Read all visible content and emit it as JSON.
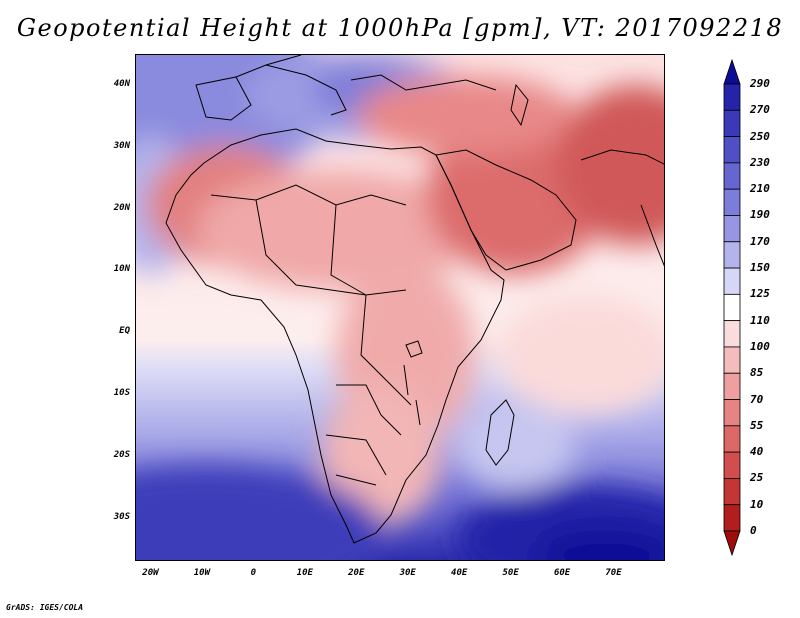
{
  "title": "Geopotential Height at 1000hPa [gpm], VT: 2017092218",
  "footer": "GrADS: IGES/COLA",
  "map": {
    "variable": "Geopotential Height at 1000hPa",
    "units": "gpm",
    "valid_time": "2017092218",
    "lon_range": [
      -23,
      80
    ],
    "lat_range": [
      -37,
      45
    ],
    "lat_labels": [
      {
        "lat": 40,
        "label": "40N"
      },
      {
        "lat": 30,
        "label": "30N"
      },
      {
        "lat": 20,
        "label": "20N"
      },
      {
        "lat": 10,
        "label": "10N"
      },
      {
        "lat": 0,
        "label": "EQ"
      },
      {
        "lat": -10,
        "label": "10S"
      },
      {
        "lat": -20,
        "label": "20S"
      },
      {
        "lat": -30,
        "label": "30S"
      }
    ],
    "lon_labels": [
      {
        "lon": -20,
        "label": "20W"
      },
      {
        "lon": -10,
        "label": "10W"
      },
      {
        "lon": 0,
        "label": "0"
      },
      {
        "lon": 10,
        "label": "10E"
      },
      {
        "lon": 20,
        "label": "20E"
      },
      {
        "lon": 30,
        "label": "30E"
      },
      {
        "lon": 40,
        "label": "40E"
      },
      {
        "lon": 50,
        "label": "50E"
      },
      {
        "lon": 60,
        "label": "60E"
      },
      {
        "lon": 70,
        "label": "70E"
      }
    ]
  },
  "colorbar": {
    "labels": [
      "290",
      "270",
      "250",
      "230",
      "210",
      "190",
      "170",
      "150",
      "125",
      "110",
      "100",
      "85",
      "70",
      "55",
      "40",
      "25",
      "10",
      "0"
    ],
    "colors": [
      "#0c0c96",
      "#2424aa",
      "#3a3ab8",
      "#5050c6",
      "#6666d0",
      "#7c7cda",
      "#9696e2",
      "#b4b4ec",
      "#d6d6f6",
      "#ffffff",
      "#fbdcdc",
      "#f5bcbc",
      "#eea0a0",
      "#e68484",
      "#dc6868",
      "#d24e4e",
      "#c43636",
      "#b21e1e",
      "#a00c0c"
    ]
  }
}
